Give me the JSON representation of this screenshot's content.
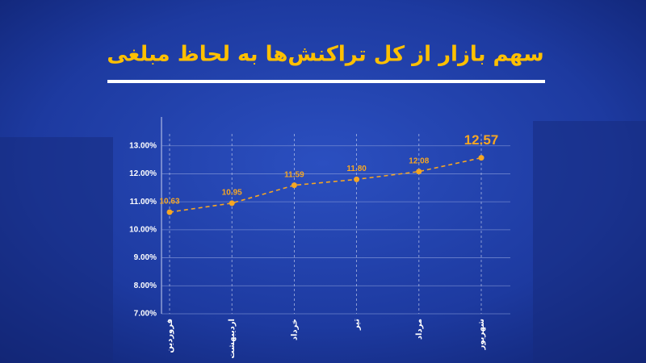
{
  "chart_data": {
    "type": "line",
    "title": "سهم بازار از کل تراکنش‌ها به لحاظ مبلغی",
    "categories": [
      "فروردین",
      "اردیبهشت",
      "خرداد",
      "تیر",
      "مرداد",
      "شهریور"
    ],
    "values": [
      10.63,
      10.95,
      11.59,
      11.8,
      12.08,
      12.57
    ],
    "value_labels": [
      "10.63",
      "10.95",
      "11.59",
      "11.80",
      "12.08",
      "12.57"
    ],
    "color": "#f6a623",
    "ylim": [
      7,
      14
    ],
    "yticks": [
      {
        "value": 7,
        "label": "7.00%"
      },
      {
        "value": 8,
        "label": "8.00%"
      },
      {
        "value": 9,
        "label": "9.00%"
      },
      {
        "value": 10,
        "label": "10.00%"
      },
      {
        "value": 11,
        "label": "11.00%"
      },
      {
        "value": 12,
        "label": "12.00%"
      },
      {
        "value": 13,
        "label": "13.00%"
      }
    ],
    "grid": true
  }
}
